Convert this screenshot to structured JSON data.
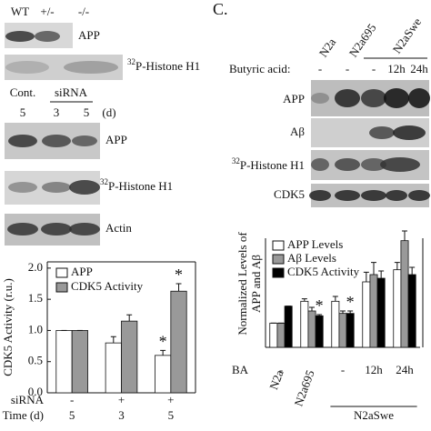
{
  "panel_a": {
    "lanes": [
      "WT",
      "+/-",
      "-/-"
    ],
    "blots": [
      {
        "label": "APP"
      },
      {
        "sup": "32",
        "label": "P-Histone H1"
      }
    ]
  },
  "panel_b": {
    "groups": [
      "Cont.",
      "siRNA"
    ],
    "days": [
      "5",
      "3",
      "5"
    ],
    "unit": "(d)",
    "blots": [
      {
        "label": "APP"
      },
      {
        "sup": "32",
        "label": "P-Histone H1"
      },
      {
        "label": "Actin"
      }
    ]
  },
  "panel_c": {
    "label": "C.",
    "lanes": [
      "N2a",
      "N2a695",
      "N2aSwe"
    ],
    "treatment_label": "Butyric acid:",
    "treatments": [
      "-",
      "-",
      "-",
      "12h",
      "24h"
    ],
    "blots": [
      {
        "label": "APP"
      },
      {
        "label": "Aβ"
      },
      {
        "sup": "32",
        "label": "P-Histone H1"
      },
      {
        "label": "CDK5"
      }
    ]
  },
  "chart_data": [
    {
      "type": "bar",
      "y_label": [
        "CDK5 Activity (r.u.)"
      ],
      "categories": [
        null,
        null,
        null
      ],
      "x_rows": [
        {
          "label": "siRNA",
          "values": [
            "-",
            "+",
            "+"
          ]
        },
        {
          "label": "Time (d)",
          "values": [
            "5",
            "3",
            "5"
          ]
        }
      ],
      "series": [
        {
          "name": "APP",
          "color": "#ffffff",
          "values": [
            1.0,
            0.8,
            0.6
          ],
          "errors": [
            0,
            0.1,
            0.08
          ],
          "significance": [
            null,
            null,
            "*"
          ]
        },
        {
          "name": "CDK5 Activity",
          "color": "#999999",
          "values": [
            1.0,
            1.15,
            1.63
          ],
          "errors": [
            0,
            0.1,
            0.12
          ],
          "significance": [
            null,
            null,
            "*"
          ]
        }
      ],
      "ylim": [
        0,
        2.1
      ],
      "yticks": [
        {
          "value": 0,
          "label": "0.0"
        },
        0.5,
        {
          "value": 1,
          "label": "1.0"
        },
        1.5,
        {
          "value": 2,
          "label": "2.0"
        }
      ]
    },
    {
      "type": "bar",
      "y_label": [
        "Normalized Levels of",
        "APP and Aβ"
      ],
      "categories": [
        "N2a",
        "N2a695",
        null,
        "N2aSwe",
        null
      ],
      "x_label_rotation": -70,
      "x_rows": [
        {
          "label": "BA",
          "values": [
            "-",
            null,
            "-",
            "12h",
            "24h"
          ]
        }
      ],
      "series": [
        {
          "name": "APP Levels",
          "color": "#ffffff",
          "values": [
            1.0,
            1.9,
            1.9,
            2.7,
            3.2
          ],
          "errors": [
            0,
            0.1,
            0.2,
            0.4,
            0.3
          ],
          "significance": [
            null,
            null,
            null,
            null,
            null
          ]
        },
        {
          "name": "Aβ Levels",
          "color": "#999999",
          "values": [
            1.0,
            1.5,
            1.4,
            3.0,
            4.4
          ],
          "errors": [
            0,
            0.15,
            0.1,
            0.5,
            0.4
          ],
          "significance": [
            null,
            null,
            null,
            null,
            null
          ]
        },
        {
          "name": "CDK5 Activity",
          "color": "#000000",
          "values": [
            1.7,
            1.3,
            1.4,
            2.85,
            3.0
          ],
          "errors": [
            0,
            0.05,
            0.1,
            0.3,
            0.3
          ],
          "significance": [
            null,
            "*",
            "*",
            null,
            null
          ]
        }
      ],
      "ylim": [
        0,
        4.5
      ]
    }
  ]
}
